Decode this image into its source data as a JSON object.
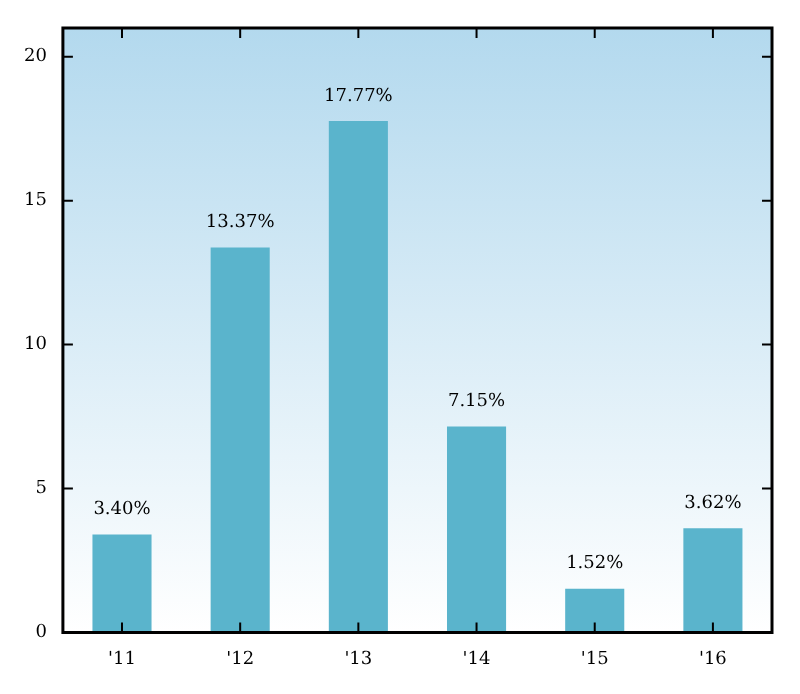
{
  "chart_data": {
    "type": "bar",
    "categories": [
      "'11",
      "'12",
      "'13",
      "'14",
      "'15",
      "'16"
    ],
    "values": [
      3.4,
      13.37,
      17.77,
      7.15,
      1.52,
      3.62
    ],
    "value_labels": [
      "3.40%",
      "13.37%",
      "17.77%",
      "7.15%",
      "1.52%",
      "3.62%"
    ],
    "color": "#5ab4cc",
    "ylim": [
      0,
      21
    ],
    "yticks": [
      0,
      5,
      10,
      15,
      20
    ],
    "grid": false,
    "legend": false
  }
}
